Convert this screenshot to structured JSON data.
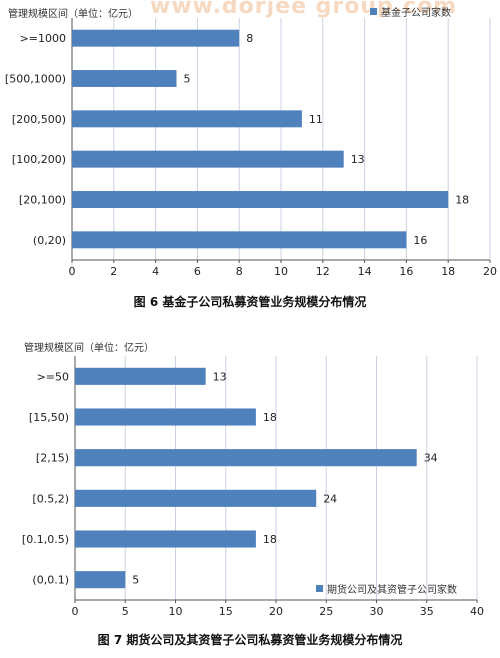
{
  "watermark": "www.dorjee group.com",
  "chart_data": [
    {
      "type": "bar",
      "orientation": "horizontal",
      "unit_label": "管理规模区间（单位：亿元）",
      "categories": [
        ">=1000",
        "[500,1000)",
        "[200,500)",
        "[100,200)",
        "[20,100)",
        "(0,20)"
      ],
      "series": [
        {
          "name": "基金子公司家数",
          "values": [
            8,
            5,
            11,
            13,
            18,
            16
          ]
        }
      ],
      "xlim": [
        0,
        20
      ],
      "xticks": [
        0,
        2,
        4,
        6,
        8,
        10,
        12,
        14,
        16,
        18,
        20
      ],
      "grid": true,
      "legend_position": "top-right",
      "bar_color": "#4F81BD",
      "caption": "图 6   基金子公司私募资管业务规模分布情况"
    },
    {
      "type": "bar",
      "orientation": "horizontal",
      "unit_label": "管理规模区间（单位：亿元）",
      "categories": [
        ">=50",
        "[15,50)",
        "[2,15)",
        "[0.5,2)",
        "[0.1,0.5)",
        "(0,0.1)"
      ],
      "series": [
        {
          "name": "期货公司及其资管子公司家数",
          "values": [
            13,
            18,
            34,
            24,
            18,
            5
          ]
        }
      ],
      "xlim": [
        0,
        40
      ],
      "xticks": [
        0,
        5,
        10,
        15,
        20,
        25,
        30,
        35,
        40
      ],
      "grid": true,
      "legend_position": "bottom-right",
      "bar_color": "#4F81BD",
      "caption": "图 7   期货公司及其资管子公司私募资管业务规模分布情况"
    }
  ]
}
